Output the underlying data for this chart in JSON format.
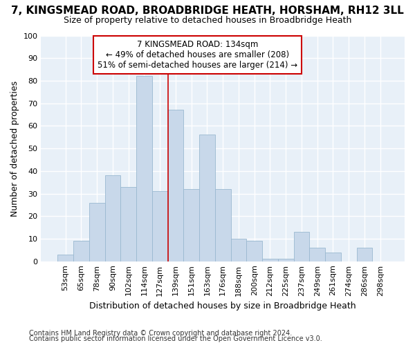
{
  "title1": "7, KINGSMEAD ROAD, BROADBRIDGE HEATH, HORSHAM, RH12 3LL",
  "title2": "Size of property relative to detached houses in Broadbridge Heath",
  "xlabel": "Distribution of detached houses by size in Broadbridge Heath",
  "ylabel": "Number of detached properties",
  "categories": [
    "53sqm",
    "65sqm",
    "78sqm",
    "90sqm",
    "102sqm",
    "114sqm",
    "127sqm",
    "139sqm",
    "151sqm",
    "163sqm",
    "176sqm",
    "188sqm",
    "200sqm",
    "212sqm",
    "225sqm",
    "237sqm",
    "249sqm",
    "261sqm",
    "274sqm",
    "286sqm",
    "298sqm"
  ],
  "values": [
    3,
    9,
    26,
    38,
    33,
    82,
    31,
    67,
    32,
    56,
    32,
    10,
    9,
    1,
    1,
    13,
    6,
    4,
    0,
    6,
    0
  ],
  "bar_color": "#c8d8ea",
  "bar_edge_color": "#9ab8d0",
  "annotation_text_line1": "7 KINGSMEAD ROAD: 134sqm",
  "annotation_text_line2": "← 49% of detached houses are smaller (208)",
  "annotation_text_line3": "51% of semi-detached houses are larger (214) →",
  "annotation_box_color": "white",
  "annotation_box_edge_color": "#cc0000",
  "vline_color": "#cc0000",
  "vline_x_index": 6.5,
  "ylim": [
    0,
    100
  ],
  "yticks": [
    0,
    10,
    20,
    30,
    40,
    50,
    60,
    70,
    80,
    90,
    100
  ],
  "footnote1": "Contains HM Land Registry data © Crown copyright and database right 2024.",
  "footnote2": "Contains public sector information licensed under the Open Government Licence v3.0.",
  "bg_color": "#ffffff",
  "plot_bg_color": "#e8f0f8",
  "grid_color": "#ffffff",
  "title_fontsize": 11,
  "subtitle_fontsize": 9,
  "ylabel_fontsize": 9,
  "xlabel_fontsize": 9,
  "tick_fontsize": 8,
  "footnote_fontsize": 7
}
